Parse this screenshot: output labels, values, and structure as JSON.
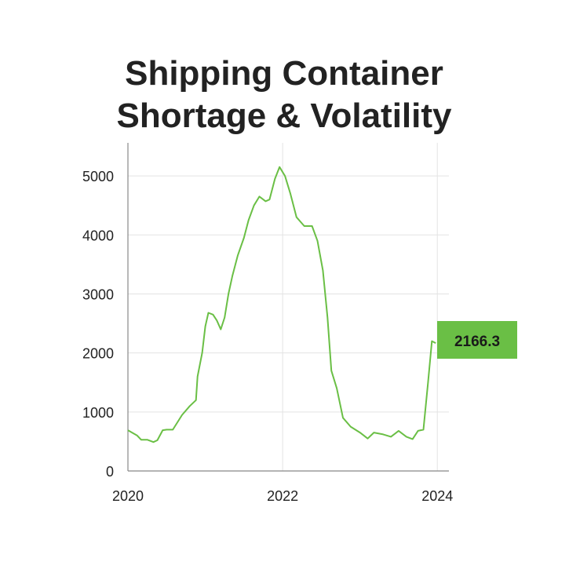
{
  "chart_data": {
    "type": "line",
    "title_lines": [
      "Shipping Container",
      "Shortage & Volatility"
    ],
    "x": [
      2020.0,
      2020.12,
      2020.17,
      2020.25,
      2020.33,
      2020.38,
      2020.45,
      2020.5,
      2020.58,
      2020.7,
      2020.8,
      2020.88,
      2020.9,
      2020.96,
      2021.0,
      2021.04,
      2021.1,
      2021.15,
      2021.2,
      2021.25,
      2021.3,
      2021.35,
      2021.42,
      2021.5,
      2021.56,
      2021.63,
      2021.7,
      2021.78,
      2021.83,
      2021.9,
      2021.96,
      2022.03,
      2022.1,
      2022.18,
      2022.28,
      2022.38,
      2022.45,
      2022.52,
      2022.58,
      2022.63,
      2022.7,
      2022.78,
      2022.88,
      2023.0,
      2023.1,
      2023.18,
      2023.3,
      2023.4,
      2023.5,
      2023.6,
      2023.68,
      2023.75,
      2023.82,
      2023.88,
      2023.93,
      2023.98
    ],
    "series": [
      {
        "color": "#6abf45",
        "values": [
          690,
          600,
          530,
          530,
          490,
          520,
          690,
          700,
          700,
          950,
          1100,
          1200,
          1600,
          2000,
          2450,
          2680,
          2650,
          2550,
          2400,
          2600,
          3000,
          3300,
          3650,
          3950,
          4250,
          4500,
          4650,
          4570,
          4600,
          4950,
          5150,
          5000,
          4700,
          4300,
          4150,
          4150,
          3900,
          3400,
          2600,
          1700,
          1400,
          900,
          750,
          650,
          550,
          650,
          620,
          580,
          680,
          580,
          540,
          680,
          700,
          1500,
          2200,
          2166.3
        ]
      }
    ],
    "xlim": [
      2020,
      2024.15
    ],
    "xticks": [
      2020,
      2022,
      2024
    ],
    "ylim": [
      0,
      5560
    ],
    "yticks": [
      0,
      1000,
      2000,
      3000,
      4000,
      5000
    ],
    "grid": true
  }
}
